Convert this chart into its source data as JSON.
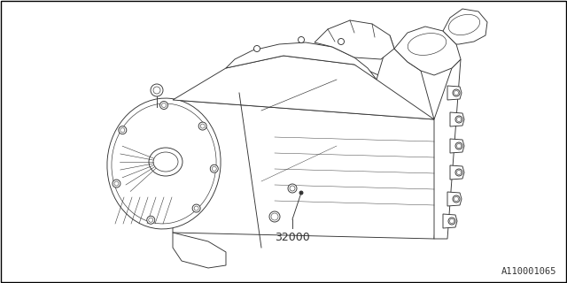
{
  "background_color": "#ffffff",
  "border_color": "#000000",
  "line_color": "#333333",
  "part_number": "32000",
  "diagram_id": "A110001065",
  "lw": 0.65,
  "fig_width": 6.4,
  "fig_height": 3.2,
  "dpi": 100
}
